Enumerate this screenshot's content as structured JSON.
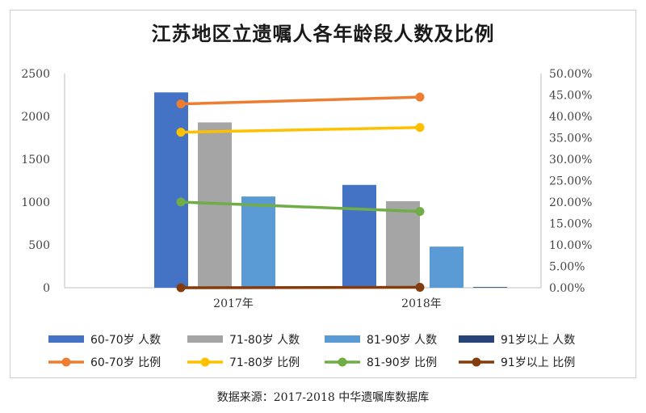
{
  "chart_data": {
    "type": "bar",
    "title": "江苏地区立遗嘱人各年龄段人数及比例",
    "categories": [
      "2017年",
      "2018年"
    ],
    "y_left": {
      "min": 0,
      "max": 2500,
      "step": 500,
      "ticks": [
        "0",
        "500",
        "1000",
        "1500",
        "2000",
        "2500"
      ]
    },
    "y_right": {
      "min": 0,
      "max": 50,
      "step": 5,
      "ticks": [
        "0.00%",
        "5.00%",
        "10.00%",
        "15.00%",
        "20.00%",
        "25.00%",
        "30.00%",
        "35.00%",
        "40.00%",
        "45.00%",
        "50.00%"
      ]
    },
    "bar_series": [
      {
        "name": "60-70岁 人数",
        "color": "#4472c4",
        "values": [
          2280,
          1200
        ]
      },
      {
        "name": "71-80岁 人数",
        "color": "#a5a5a5",
        "values": [
          1930,
          1010
        ]
      },
      {
        "name": "81-90岁 人数",
        "color": "#5b9bd5",
        "values": [
          1065,
          480
        ]
      },
      {
        "name": "91岁以上 人数",
        "color": "#264478",
        "values": [
          2,
          8
        ]
      }
    ],
    "line_series": [
      {
        "name": "60-70岁 比例",
        "color": "#ed7d31",
        "values": [
          42.9,
          44.5
        ]
      },
      {
        "name": "71-80岁 比例",
        "color": "#ffc000",
        "values": [
          36.3,
          37.4
        ]
      },
      {
        "name": "81-90岁 比例",
        "color": "#70ad47",
        "values": [
          20.0,
          17.8
        ]
      },
      {
        "name": "91岁以上 比例",
        "color": "#843c0c",
        "values": [
          0.0,
          0.1
        ]
      }
    ],
    "grid": false,
    "legend_position": "bottom"
  },
  "caption": "数据来源：2017-2018 中华遗嘱库数据库"
}
